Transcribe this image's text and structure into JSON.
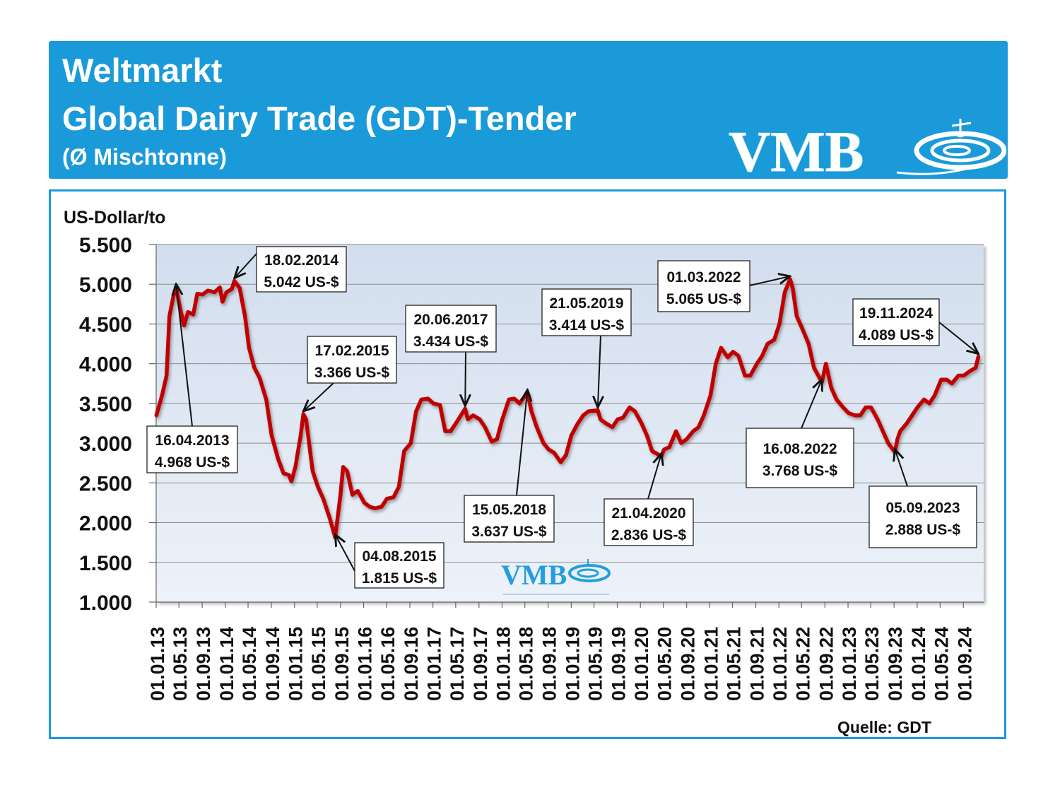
{
  "header": {
    "line1": "Weltmarkt",
    "line2": "Global Dairy Trade (GDT)-Tender",
    "line3": "(Ø Mischtonne)",
    "logo_text": "VMB"
  },
  "colors": {
    "header_bg": "#1a9ad9",
    "line": "#c00000",
    "plot_bg": "#dbe6f3",
    "highlight": "#e01010"
  },
  "chart_data": {
    "type": "line",
    "title": "",
    "ylabel": "US-Dollar/to",
    "source": "Quelle: GDT",
    "ylim": [
      1000,
      5500
    ],
    "yticks": [
      1000,
      1500,
      2000,
      2500,
      3000,
      3500,
      4000,
      4500,
      5000,
      5500
    ],
    "ytick_labels": [
      "1.000",
      "1.500",
      "2.000",
      "2.500",
      "3.000",
      "3.500",
      "4.000",
      "4.500",
      "5.000",
      "5.500"
    ],
    "xlim": [
      "2013-01-01",
      "2024-12-17"
    ],
    "xticks": [
      "01.01.13",
      "01.05.13",
      "01.09.13",
      "01.01.14",
      "01.05.14",
      "01.09.14",
      "01.01.15",
      "01.05.15",
      "01.09.15",
      "01.01.16",
      "01.05.16",
      "01.09.16",
      "01.01.17",
      "01.05.17",
      "01.09.17",
      "01.01.18",
      "01.05.18",
      "01.09.18",
      "01.01.19",
      "01.05.19",
      "01.09.19",
      "01.01.20",
      "01.05.20",
      "01.09.20",
      "01.01.21",
      "01.05.21",
      "01.09.21",
      "01.01.22",
      "01.05.22",
      "01.09.22",
      "01.01.23",
      "01.05.23",
      "01.09.23",
      "01.01.24",
      "01.05.24",
      "01.09.24"
    ],
    "grid": true,
    "series": [
      {
        "name": "",
        "color": "#c00000",
        "points": [
          [
            "2013-01-02",
            3350
          ],
          [
            "2013-02-01",
            3600
          ],
          [
            "2013-02-25",
            3850
          ],
          [
            "2013-03-12",
            4600
          ],
          [
            "2013-04-02",
            4850
          ],
          [
            "2013-04-16",
            4968
          ],
          [
            "2013-05-07",
            4700
          ],
          [
            "2013-05-28",
            4480
          ],
          [
            "2013-06-18",
            4650
          ],
          [
            "2013-07-16",
            4620
          ],
          [
            "2013-08-06",
            4880
          ],
          [
            "2013-09-03",
            4870
          ],
          [
            "2013-10-01",
            4920
          ],
          [
            "2013-11-05",
            4900
          ],
          [
            "2013-12-03",
            4960
          ],
          [
            "2013-12-17",
            4780
          ],
          [
            "2014-01-07",
            4900
          ],
          [
            "2014-02-04",
            4940
          ],
          [
            "2014-02-18",
            5042
          ],
          [
            "2014-03-18",
            4950
          ],
          [
            "2014-04-15",
            4600
          ],
          [
            "2014-05-06",
            4200
          ],
          [
            "2014-06-03",
            3950
          ],
          [
            "2014-07-01",
            3820
          ],
          [
            "2014-08-05",
            3550
          ],
          [
            "2014-09-02",
            3100
          ],
          [
            "2014-10-07",
            2800
          ],
          [
            "2014-11-04",
            2620
          ],
          [
            "2014-12-02",
            2600
          ],
          [
            "2014-12-16",
            2520
          ],
          [
            "2015-01-06",
            2700
          ],
          [
            "2015-02-03",
            3100
          ],
          [
            "2015-02-17",
            3366
          ],
          [
            "2015-03-03",
            3300
          ],
          [
            "2015-04-07",
            2650
          ],
          [
            "2015-05-05",
            2450
          ],
          [
            "2015-06-02",
            2300
          ],
          [
            "2015-07-07",
            2050
          ],
          [
            "2015-08-04",
            1815
          ],
          [
            "2015-09-01",
            2350
          ],
          [
            "2015-09-15",
            2700
          ],
          [
            "2015-10-06",
            2650
          ],
          [
            "2015-11-03",
            2350
          ],
          [
            "2015-12-01",
            2400
          ],
          [
            "2016-01-05",
            2250
          ],
          [
            "2016-02-02",
            2200
          ],
          [
            "2016-03-01",
            2180
          ],
          [
            "2016-04-05",
            2200
          ],
          [
            "2016-05-03",
            2300
          ],
          [
            "2016-06-07",
            2320
          ],
          [
            "2016-07-05",
            2450
          ],
          [
            "2016-08-02",
            2900
          ],
          [
            "2016-09-06",
            3000
          ],
          [
            "2016-10-04",
            3400
          ],
          [
            "2016-11-01",
            3550
          ],
          [
            "2016-12-06",
            3560
          ],
          [
            "2017-01-03",
            3500
          ],
          [
            "2017-02-07",
            3480
          ],
          [
            "2017-03-07",
            3150
          ],
          [
            "2017-04-04",
            3150
          ],
          [
            "2017-05-02",
            3250
          ],
          [
            "2017-06-20",
            3434
          ],
          [
            "2017-07-04",
            3300
          ],
          [
            "2017-08-01",
            3350
          ],
          [
            "2017-09-05",
            3300
          ],
          [
            "2017-10-03",
            3200
          ],
          [
            "2017-11-07",
            3020
          ],
          [
            "2017-12-05",
            3050
          ],
          [
            "2018-01-02",
            3300
          ],
          [
            "2018-02-06",
            3550
          ],
          [
            "2018-03-06",
            3560
          ],
          [
            "2018-04-03",
            3500
          ],
          [
            "2018-05-15",
            3637
          ],
          [
            "2018-06-05",
            3400
          ],
          [
            "2018-07-03",
            3200
          ],
          [
            "2018-08-07",
            3000
          ],
          [
            "2018-09-04",
            2920
          ],
          [
            "2018-10-02",
            2880
          ],
          [
            "2018-11-06",
            2760
          ],
          [
            "2018-12-04",
            2850
          ],
          [
            "2019-01-02",
            3100
          ],
          [
            "2019-02-05",
            3250
          ],
          [
            "2019-03-05",
            3350
          ],
          [
            "2019-04-02",
            3400
          ],
          [
            "2019-05-21",
            3414
          ],
          [
            "2019-06-04",
            3300
          ],
          [
            "2019-07-02",
            3250
          ],
          [
            "2019-08-06",
            3200
          ],
          [
            "2019-09-03",
            3300
          ],
          [
            "2019-10-01",
            3320
          ],
          [
            "2019-11-05",
            3450
          ],
          [
            "2019-12-03",
            3400
          ],
          [
            "2020-01-07",
            3250
          ],
          [
            "2020-02-04",
            3100
          ],
          [
            "2020-03-03",
            2900
          ],
          [
            "2020-04-21",
            2836
          ],
          [
            "2020-05-05",
            2920
          ],
          [
            "2020-06-02",
            2950
          ],
          [
            "2020-07-07",
            3150
          ],
          [
            "2020-08-04",
            3000
          ],
          [
            "2020-09-01",
            3050
          ],
          [
            "2020-10-06",
            3150
          ],
          [
            "2020-11-03",
            3200
          ],
          [
            "2020-12-01",
            3350
          ],
          [
            "2021-01-05",
            3600
          ],
          [
            "2021-02-02",
            4000
          ],
          [
            "2021-03-02",
            4200
          ],
          [
            "2021-04-06",
            4080
          ],
          [
            "2021-05-04",
            4150
          ],
          [
            "2021-06-01",
            4100
          ],
          [
            "2021-07-06",
            3850
          ],
          [
            "2021-08-03",
            3850
          ],
          [
            "2021-09-07",
            4000
          ],
          [
            "2021-10-05",
            4100
          ],
          [
            "2021-11-02",
            4250
          ],
          [
            "2021-12-07",
            4300
          ],
          [
            "2022-01-04",
            4500
          ],
          [
            "2022-02-01",
            4900
          ],
          [
            "2022-03-01",
            5065
          ],
          [
            "2022-03-15",
            4950
          ],
          [
            "2022-04-05",
            4600
          ],
          [
            "2022-05-03",
            4450
          ],
          [
            "2022-06-07",
            4250
          ],
          [
            "2022-07-05",
            3950
          ],
          [
            "2022-08-16",
            3768
          ],
          [
            "2022-09-06",
            4000
          ],
          [
            "2022-10-04",
            3700
          ],
          [
            "2022-11-01",
            3550
          ],
          [
            "2022-12-06",
            3450
          ],
          [
            "2023-01-03",
            3380
          ],
          [
            "2023-02-07",
            3350
          ],
          [
            "2023-03-07",
            3350
          ],
          [
            "2023-04-04",
            3450
          ],
          [
            "2023-05-02",
            3450
          ],
          [
            "2023-06-06",
            3300
          ],
          [
            "2023-07-04",
            3150
          ],
          [
            "2023-08-01",
            3000
          ],
          [
            "2023-09-05",
            2888
          ],
          [
            "2023-09-19",
            3050
          ],
          [
            "2023-10-03",
            3150
          ],
          [
            "2023-11-07",
            3250
          ],
          [
            "2023-12-05",
            3350
          ],
          [
            "2024-01-02",
            3450
          ],
          [
            "2024-02-06",
            3550
          ],
          [
            "2024-03-05",
            3500
          ],
          [
            "2024-04-02",
            3600
          ],
          [
            "2024-05-07",
            3800
          ],
          [
            "2024-06-04",
            3800
          ],
          [
            "2024-07-02",
            3750
          ],
          [
            "2024-08-06",
            3850
          ],
          [
            "2024-09-03",
            3850
          ],
          [
            "2024-10-01",
            3900
          ],
          [
            "2024-11-05",
            3950
          ],
          [
            "2024-11-19",
            4089
          ]
        ]
      }
    ],
    "annotations": [
      {
        "date": "2013-04-16",
        "value": 4968,
        "label_date": "16.04.2013",
        "label_value": "4.968 US-$",
        "highlight": false
      },
      {
        "date": "2014-02-18",
        "value": 5042,
        "label_date": "18.02.2014",
        "label_value": "5.042 US-$",
        "highlight": false
      },
      {
        "date": "2015-02-17",
        "value": 3366,
        "label_date": "17.02.2015",
        "label_value": "3.366 US-$",
        "highlight": false
      },
      {
        "date": "2015-08-04",
        "value": 1815,
        "label_date": "04.08.2015",
        "label_value": "1.815 US-$",
        "highlight": false
      },
      {
        "date": "2017-06-20",
        "value": 3434,
        "label_date": "20.06.2017",
        "label_value": "3.434 US-$",
        "highlight": false
      },
      {
        "date": "2018-05-15",
        "value": 3637,
        "label_date": "15.05.2018",
        "label_value": "3.637 US-$",
        "highlight": false
      },
      {
        "date": "2019-05-21",
        "value": 3414,
        "label_date": "21.05.2019",
        "label_value": "3.414 US-$",
        "highlight": false
      },
      {
        "date": "2020-04-21",
        "value": 2836,
        "label_date": "21.04.2020",
        "label_value": "2.836 US-$",
        "highlight": false
      },
      {
        "date": "2022-03-01",
        "value": 5065,
        "label_date": "01.03.2022",
        "label_value": "5.065 US-$",
        "highlight": false
      },
      {
        "date": "2022-08-16",
        "value": 3768,
        "label_date": "16.08.2022",
        "label_value": "3.768 US-$",
        "highlight": false
      },
      {
        "date": "2023-09-05",
        "value": 2888,
        "label_date": "05.09.2023",
        "label_value": "2.888 US-$",
        "highlight": false
      },
      {
        "date": "2024-11-19",
        "value": 4089,
        "label_date": "19.11.2024",
        "label_value": "4.089 US-$",
        "highlight": true
      }
    ]
  }
}
